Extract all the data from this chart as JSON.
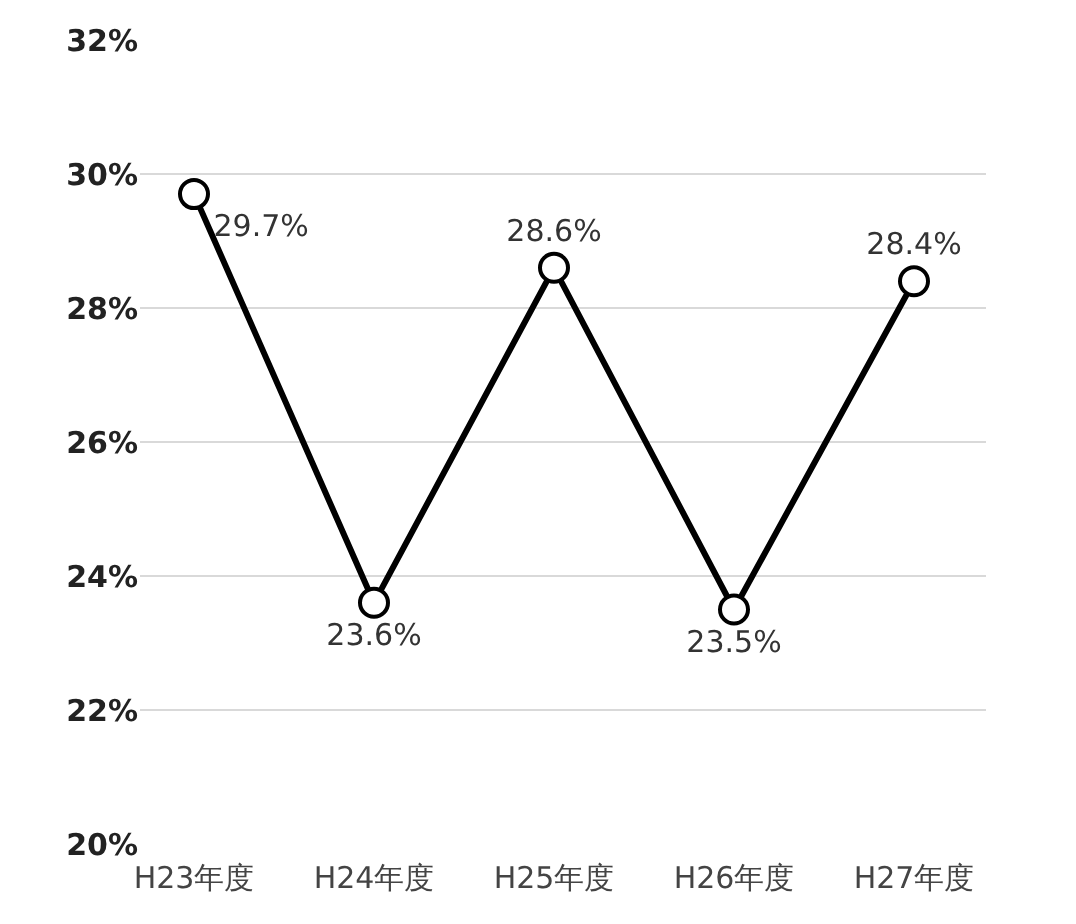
{
  "chart_data": {
    "type": "line",
    "categories": [
      "H23年度",
      "H24年度",
      "H25年度",
      "H26年度",
      "H27年度"
    ],
    "series": [
      {
        "color": "#000000",
        "values": [
          29.7,
          23.6,
          28.6,
          23.5,
          28.4
        ],
        "value_labels": [
          "29.7%",
          "23.6%",
          "28.6%",
          "23.5%",
          "28.4%"
        ]
      }
    ],
    "ylim": [
      20,
      32
    ],
    "yticks": [
      {
        "value": 20,
        "label": "20%"
      },
      {
        "value": 22,
        "label": "22%"
      },
      {
        "value": 24,
        "label": "24%"
      },
      {
        "value": 26,
        "label": "26%"
      },
      {
        "value": 28,
        "label": "28%"
      },
      {
        "value": 30,
        "label": "30%"
      },
      {
        "value": 32,
        "label": "32%"
      }
    ],
    "grid": "y",
    "marker": "circle",
    "line_style": "solid",
    "legend": false
  }
}
